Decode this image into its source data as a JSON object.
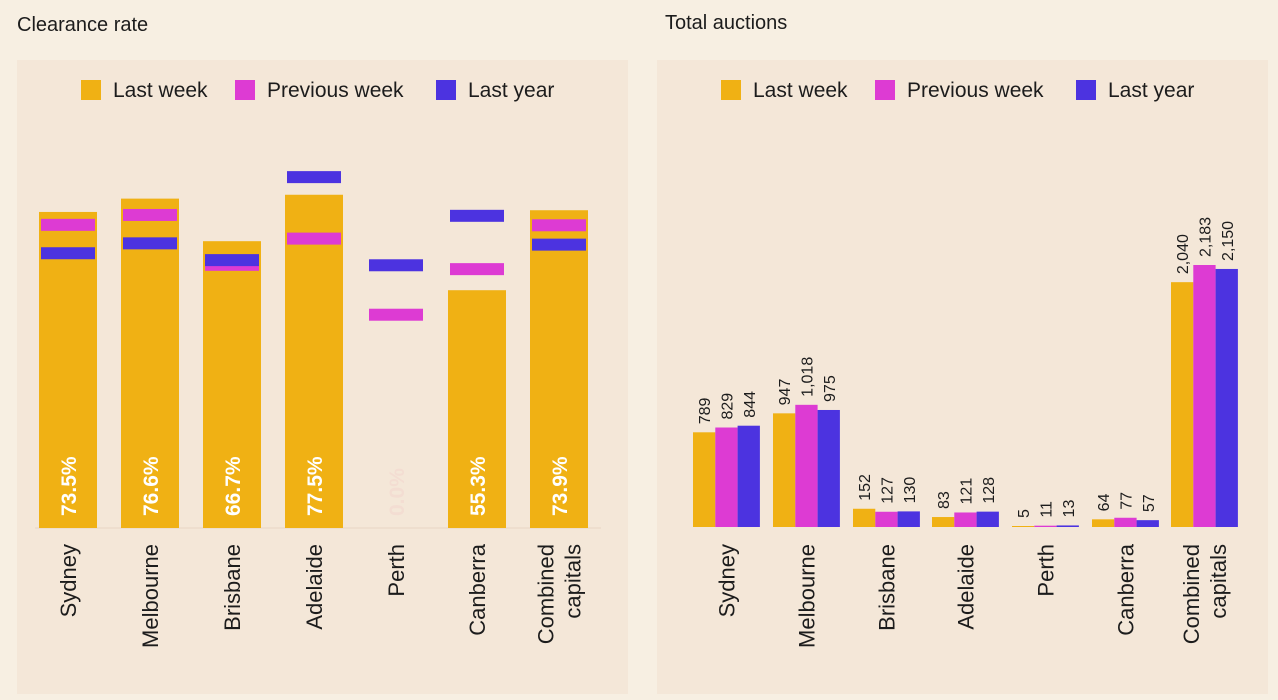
{
  "colors": {
    "last_week": "#f0b114",
    "previous_week": "#dd3bd3",
    "last_year": "#4c33e0",
    "background": "#f7efe2",
    "panel": "#f4e7d8"
  },
  "legend": {
    "last_week": "Last week",
    "previous_week": "Previous week",
    "last_year": "Last year"
  },
  "chart_data": [
    {
      "type": "bar",
      "title": "Clearance rate",
      "categories": [
        [
          "Sydney"
        ],
        [
          "Melbourne"
        ],
        [
          "Brisbane"
        ],
        [
          "Adelaide"
        ],
        [
          "Perth"
        ],
        [
          "Canberra"
        ],
        [
          "Combined",
          "capitals"
        ]
      ],
      "series": [
        {
          "name": "Last week",
          "values": [
            73.5,
            76.6,
            66.7,
            77.5,
            0.0,
            55.3,
            73.9
          ],
          "labels": [
            "73.5%",
            "76.6%",
            "66.7%",
            "77.5%",
            "0.0%",
            "55.3%",
            "73.9%"
          ]
        },
        {
          "name": "Previous week",
          "values": [
            70.5,
            72.8,
            61.2,
            67.3,
            49.6,
            60.2,
            70.4
          ]
        },
        {
          "name": "Last year",
          "values": [
            63.9,
            66.2,
            62.3,
            81.6,
            61.1,
            72.6,
            65.9
          ]
        }
      ],
      "ylim": [
        0,
        100
      ]
    },
    {
      "type": "bar",
      "title": "Total auctions",
      "categories": [
        [
          "Sydney"
        ],
        [
          "Melbourne"
        ],
        [
          "Brisbane"
        ],
        [
          "Adelaide"
        ],
        [
          "Perth"
        ],
        [
          "Canberra"
        ],
        [
          "Combined",
          "capitals"
        ]
      ],
      "series": [
        {
          "name": "Last week",
          "values": [
            789,
            947,
            152,
            83,
            5,
            64,
            2040
          ],
          "labels": [
            "789",
            "947",
            "152",
            "83",
            "5",
            "64",
            "2,040"
          ]
        },
        {
          "name": "Previous week",
          "values": [
            829,
            1018,
            127,
            121,
            11,
            77,
            2183
          ],
          "labels": [
            "829",
            "1,018",
            "127",
            "121",
            "11",
            "77",
            "2,183"
          ]
        },
        {
          "name": "Last year",
          "values": [
            844,
            975,
            130,
            128,
            13,
            57,
            2150
          ],
          "labels": [
            "844",
            "975",
            "130",
            "128",
            "13",
            "57",
            "2,150"
          ]
        }
      ],
      "ylim": [
        0,
        2183
      ]
    }
  ]
}
